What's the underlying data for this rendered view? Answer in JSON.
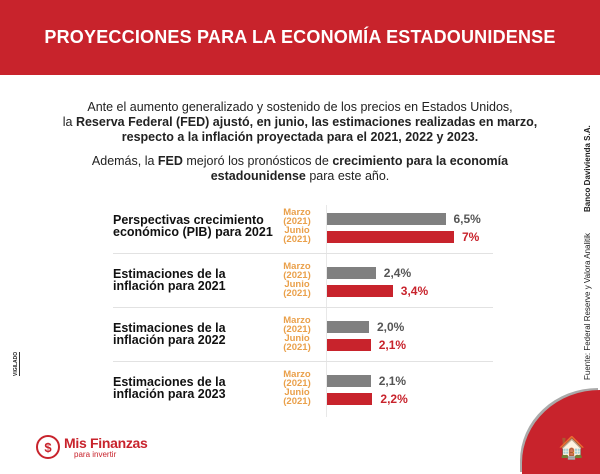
{
  "header": {
    "title": "PROYECCIONES PARA LA ECONOMÍA ESTADOUNIDENSE"
  },
  "intro": {
    "p1_a": "Ante el aumento generalizado y sostenido de los precios en Estados Unidos,",
    "p1_b": "la ",
    "p1_c": "Reserva Federal (FED) ajustó, en junio, las estimaciones realizadas en marzo, respecto a la inflación proyectada para el 2021, 2022 y 2023.",
    "p2_a": "Además, la ",
    "p2_b": "FED",
    "p2_c": " mejoró los pronósticos de ",
    "p2_d": "crecimiento para la economía estadounidense",
    "p2_e": " para este año."
  },
  "chart_data": {
    "type": "bar",
    "orientation": "horizontal",
    "categories": [
      "Perspectivas crecimiento económico (PIB) para 2021",
      "Estimaciones de la inflación para 2021",
      "Estimaciones de la inflación para 2022",
      "Estimaciones de la inflación para 2023"
    ],
    "series": [
      {
        "name": "Marzo (2021)",
        "color": "#808080",
        "values": [
          6.5,
          2.4,
          2.0,
          2.1
        ],
        "labels": [
          "6,5%",
          "2,4%",
          "2,0%",
          "2,1%"
        ]
      },
      {
        "name": "Junio (2021)",
        "color": "#c8232c",
        "values": [
          7,
          3.4,
          2.1,
          2.2
        ],
        "labels": [
          "7%",
          "3,4%",
          "2,1%",
          "2,2%"
        ]
      }
    ]
  },
  "source": "Fuente:  Federal Reserve y Valora Analitik",
  "credit": "Banco Davivienda S.A.",
  "vigilado": "VIGILADO",
  "logo": {
    "name": "Mis Finanzas",
    "tagline": "para invertir",
    "symbol": "$"
  },
  "colors": {
    "brand": "#c8232c",
    "accent": "#eaa04a",
    "gray": "#808080"
  }
}
